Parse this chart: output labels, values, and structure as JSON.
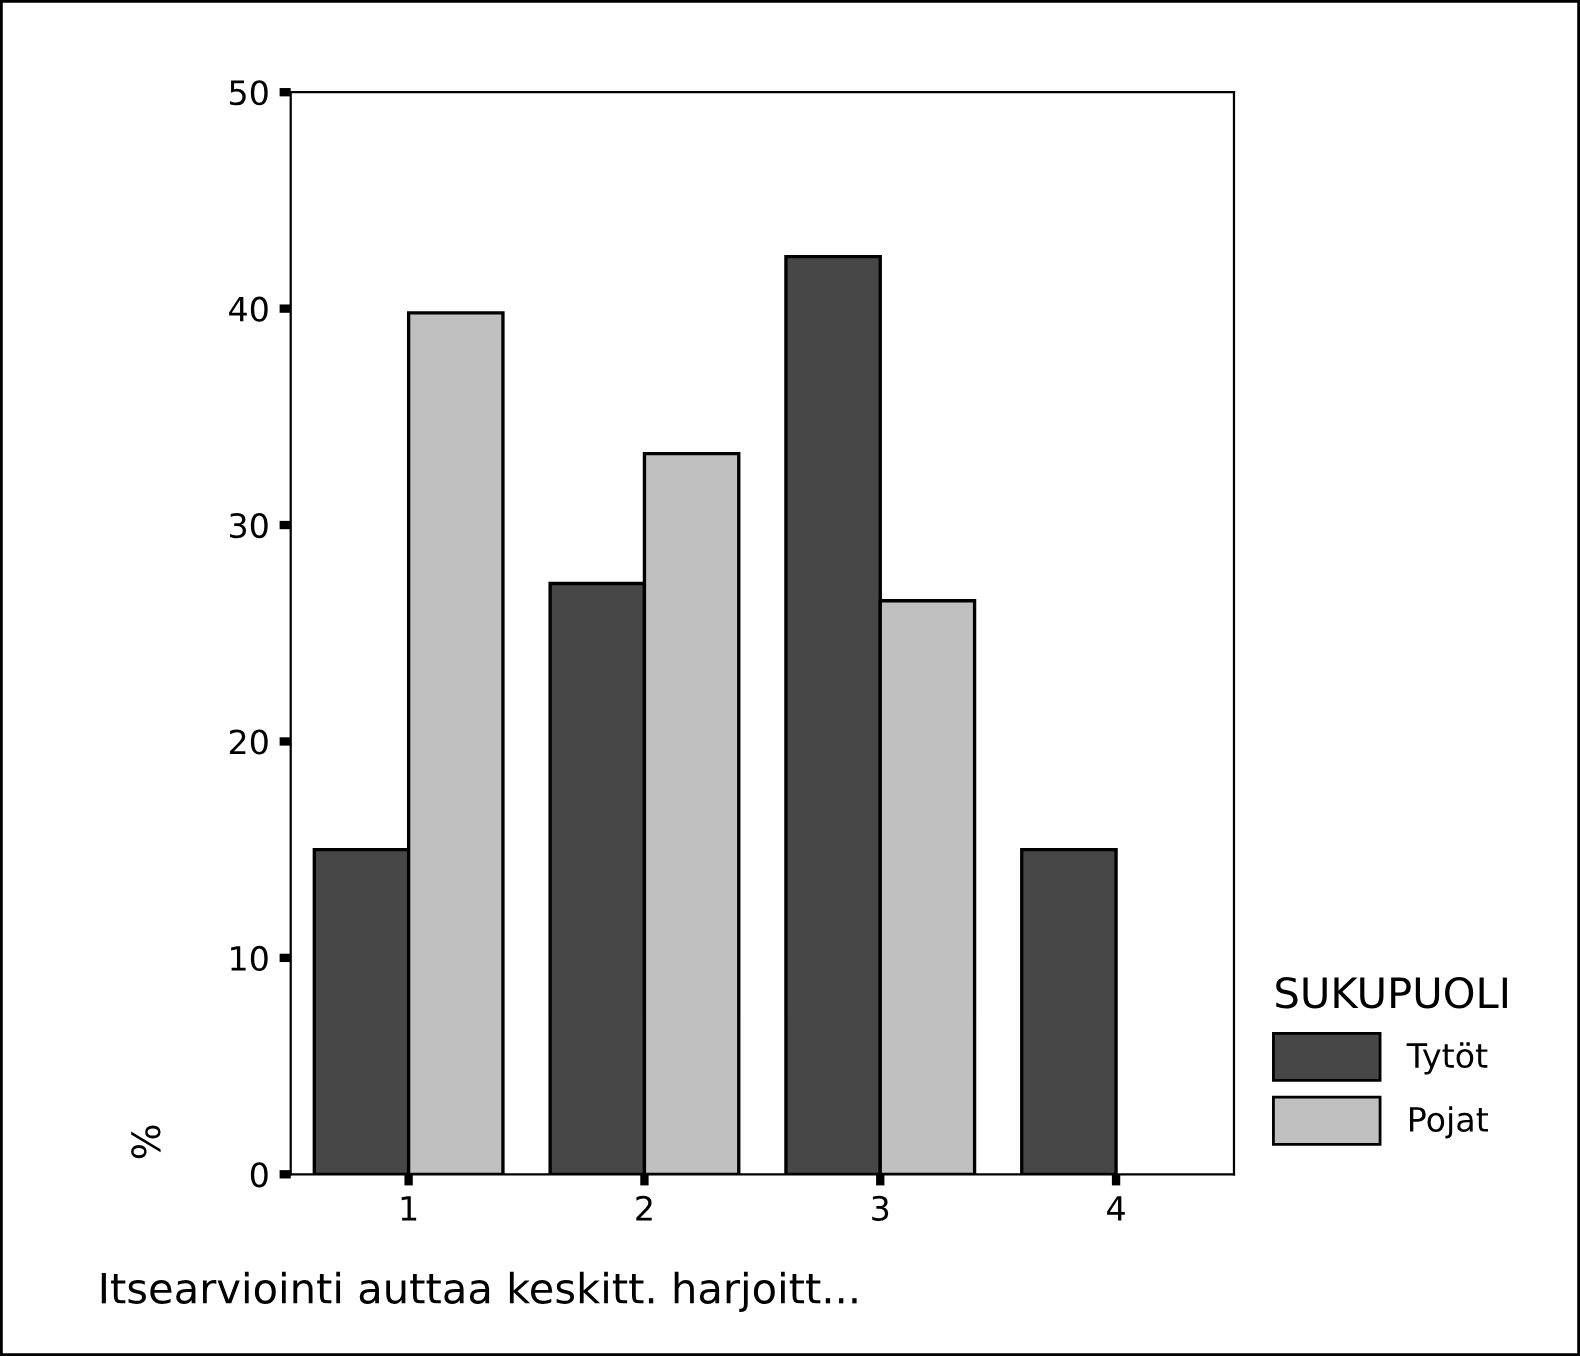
{
  "chart_data": {
    "type": "bar",
    "xlabel": "Itsearviointi auttaa keskitt. harjoitt...",
    "ylabel": "%",
    "legend_title": "SUKUPUOLI",
    "categories": [
      "1",
      "2",
      "3",
      "4"
    ],
    "series": [
      {
        "name": "Tytöt",
        "color": "#474747",
        "values": [
          15,
          27.3,
          42.4,
          15
        ]
      },
      {
        "name": "Pojat",
        "color": "#c0c0c0",
        "values": [
          39.8,
          33.3,
          26.5,
          0
        ]
      }
    ],
    "ylim": [
      0,
      50
    ],
    "yticks": [
      0,
      10,
      20,
      30,
      40,
      50
    ],
    "grid": false,
    "legend": "right"
  }
}
